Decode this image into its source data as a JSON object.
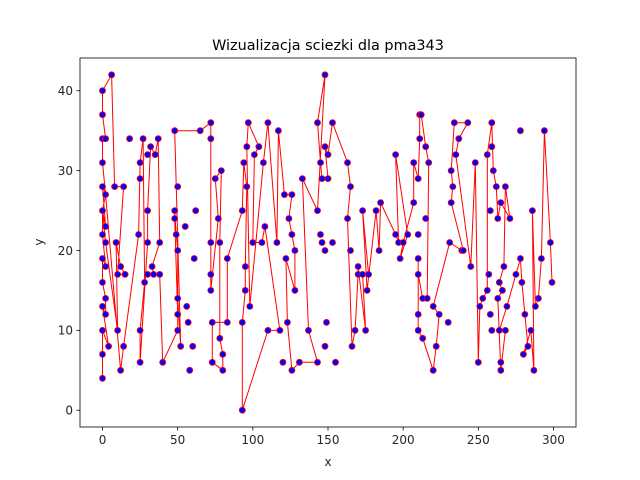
{
  "chart_data": {
    "type": "scatter",
    "title": "Wizualizacja sciezki dla pma343",
    "xlabel": "x",
    "ylabel": "y",
    "xlim": [
      -15,
      315
    ],
    "ylim": [
      -2.1,
      44.1
    ],
    "xticks": [
      0,
      50,
      100,
      150,
      200,
      250,
      300
    ],
    "yticks": [
      0,
      10,
      20,
      30,
      40
    ],
    "grid": false,
    "colors": {
      "point_fill": "#0000ff",
      "point_edge": "#ff0000",
      "line": "#ff0000"
    },
    "points": [
      [
        0,
        4
      ],
      [
        0,
        7
      ],
      [
        0,
        10
      ],
      [
        0,
        13
      ],
      [
        0,
        16
      ],
      [
        0,
        19
      ],
      [
        0,
        22
      ],
      [
        0,
        25
      ],
      [
        0,
        28
      ],
      [
        0,
        31
      ],
      [
        0,
        34
      ],
      [
        0,
        37
      ],
      [
        0,
        40
      ],
      [
        2,
        12
      ],
      [
        2,
        14
      ],
      [
        2,
        18
      ],
      [
        2,
        21
      ],
      [
        2,
        23
      ],
      [
        2,
        27
      ],
      [
        2,
        34
      ],
      [
        4,
        8
      ],
      [
        6,
        42
      ],
      [
        8,
        28
      ],
      [
        9,
        21
      ],
      [
        10,
        17
      ],
      [
        10,
        10
      ],
      [
        12,
        18
      ],
      [
        12,
        5
      ],
      [
        14,
        8
      ],
      [
        14,
        28
      ],
      [
        15,
        17
      ],
      [
        18,
        34
      ],
      [
        24,
        22
      ],
      [
        25,
        10
      ],
      [
        25,
        6
      ],
      [
        25,
        31
      ],
      [
        25,
        29
      ],
      [
        27,
        34
      ],
      [
        28,
        16
      ],
      [
        30,
        17
      ],
      [
        30,
        21
      ],
      [
        30,
        25
      ],
      [
        30,
        32
      ],
      [
        32,
        33
      ],
      [
        33,
        18
      ],
      [
        34,
        17
      ],
      [
        35,
        32
      ],
      [
        37,
        34
      ],
      [
        38,
        17
      ],
      [
        38,
        21
      ],
      [
        40,
        6
      ],
      [
        48,
        35
      ],
      [
        48,
        25
      ],
      [
        48,
        24
      ],
      [
        49,
        22
      ],
      [
        50,
        28
      ],
      [
        50,
        20
      ],
      [
        50,
        14
      ],
      [
        50,
        12
      ],
      [
        50,
        10
      ],
      [
        52,
        8
      ],
      [
        55,
        23
      ],
      [
        56,
        13
      ],
      [
        57,
        11
      ],
      [
        58,
        5
      ],
      [
        60,
        8
      ],
      [
        61,
        19
      ],
      [
        62,
        25
      ],
      [
        65,
        35
      ],
      [
        72,
        36
      ],
      [
        72,
        34
      ],
      [
        72,
        21
      ],
      [
        72,
        17
      ],
      [
        72,
        15
      ],
      [
        73,
        11
      ],
      [
        73,
        6
      ],
      [
        75,
        29
      ],
      [
        77,
        24
      ],
      [
        78,
        21
      ],
      [
        78,
        9
      ],
      [
        79,
        30
      ],
      [
        80,
        5
      ],
      [
        80,
        7
      ],
      [
        83,
        11
      ],
      [
        83,
        19
      ],
      [
        93,
        0
      ],
      [
        93,
        11
      ],
      [
        93,
        25
      ],
      [
        94,
        31
      ],
      [
        95,
        18
      ],
      [
        95,
        15
      ],
      [
        96,
        28
      ],
      [
        96,
        33
      ],
      [
        97,
        36
      ],
      [
        98,
        13
      ],
      [
        100,
        21
      ],
      [
        101,
        32
      ],
      [
        104,
        33
      ],
      [
        106,
        21
      ],
      [
        107,
        31
      ],
      [
        108,
        23
      ],
      [
        110,
        10
      ],
      [
        110,
        36
      ],
      [
        116,
        21
      ],
      [
        117,
        35
      ],
      [
        118,
        10
      ],
      [
        120,
        6
      ],
      [
        121,
        27
      ],
      [
        122,
        19
      ],
      [
        123,
        11
      ],
      [
        124,
        24
      ],
      [
        126,
        27
      ],
      [
        126,
        5
      ],
      [
        126,
        22
      ],
      [
        128,
        15
      ],
      [
        128,
        20
      ],
      [
        131,
        6
      ],
      [
        133,
        29
      ],
      [
        137,
        10
      ],
      [
        143,
        6
      ],
      [
        143,
        25
      ],
      [
        143,
        36
      ],
      [
        145,
        31
      ],
      [
        145,
        22
      ],
      [
        146,
        21
      ],
      [
        146,
        29
      ],
      [
        148,
        8
      ],
      [
        148,
        42
      ],
      [
        148,
        20
      ],
      [
        148,
        33
      ],
      [
        149,
        11
      ],
      [
        150,
        32
      ],
      [
        150,
        29
      ],
      [
        153,
        21
      ],
      [
        153,
        36
      ],
      [
        155,
        6
      ],
      [
        163,
        24
      ],
      [
        163,
        31
      ],
      [
        165,
        28
      ],
      [
        165,
        20
      ],
      [
        166,
        8
      ],
      [
        168,
        10
      ],
      [
        170,
        18
      ],
      [
        170,
        17
      ],
      [
        173,
        25
      ],
      [
        173,
        17
      ],
      [
        175,
        10
      ],
      [
        176,
        15
      ],
      [
        177,
        17
      ],
      [
        182,
        25
      ],
      [
        184,
        20
      ],
      [
        185,
        26
      ],
      [
        195,
        32
      ],
      [
        195,
        22
      ],
      [
        197,
        21
      ],
      [
        198,
        19
      ],
      [
        200,
        21
      ],
      [
        203,
        22
      ],
      [
        207,
        31
      ],
      [
        207,
        26
      ],
      [
        210,
        17
      ],
      [
        210,
        12
      ],
      [
        210,
        10
      ],
      [
        210,
        19
      ],
      [
        210,
        22
      ],
      [
        210,
        29
      ],
      [
        211,
        34
      ],
      [
        211,
        37
      ],
      [
        212,
        37
      ],
      [
        213,
        14
      ],
      [
        213,
        9
      ],
      [
        215,
        33
      ],
      [
        215,
        24
      ],
      [
        216,
        14
      ],
      [
        217,
        31
      ],
      [
        220,
        13
      ],
      [
        220,
        5
      ],
      [
        222,
        8
      ],
      [
        224,
        12
      ],
      [
        230,
        11
      ],
      [
        231,
        21
      ],
      [
        232,
        30
      ],
      [
        232,
        26
      ],
      [
        233,
        28
      ],
      [
        234,
        36
      ],
      [
        235,
        32
      ],
      [
        237,
        34
      ],
      [
        239,
        20
      ],
      [
        240,
        20
      ],
      [
        243,
        36
      ],
      [
        245,
        18
      ],
      [
        248,
        31
      ],
      [
        250,
        6
      ],
      [
        251,
        13
      ],
      [
        253,
        14
      ],
      [
        256,
        32
      ],
      [
        256,
        15
      ],
      [
        257,
        17
      ],
      [
        258,
        12
      ],
      [
        258,
        25
      ],
      [
        259,
        36
      ],
      [
        259,
        10
      ],
      [
        259,
        33
      ],
      [
        260,
        30
      ],
      [
        262,
        28
      ],
      [
        263,
        24
      ],
      [
        263,
        14
      ],
      [
        264,
        16
      ],
      [
        264,
        10
      ],
      [
        265,
        5
      ],
      [
        265,
        26
      ],
      [
        265,
        6
      ],
      [
        266,
        15
      ],
      [
        267,
        18
      ],
      [
        268,
        10
      ],
      [
        268,
        28
      ],
      [
        269,
        13
      ],
      [
        271,
        24
      ],
      [
        275,
        17
      ],
      [
        278,
        35
      ],
      [
        278,
        19
      ],
      [
        279,
        16
      ],
      [
        280,
        7
      ],
      [
        281,
        12
      ],
      [
        283,
        8
      ],
      [
        285,
        10
      ],
      [
        286,
        25
      ],
      [
        287,
        5
      ],
      [
        288,
        13
      ],
      [
        290,
        14
      ],
      [
        292,
        19
      ],
      [
        294,
        35
      ],
      [
        298,
        21
      ],
      [
        299,
        16
      ]
    ],
    "path": [
      [
        0,
        4
      ],
      [
        0,
        7
      ],
      [
        0,
        10
      ],
      [
        4,
        8
      ],
      [
        0,
        13
      ],
      [
        2,
        12
      ],
      [
        2,
        14
      ],
      [
        0,
        16
      ],
      [
        0,
        19
      ],
      [
        2,
        18
      ],
      [
        0,
        22
      ],
      [
        0,
        25
      ],
      [
        2,
        23
      ],
      [
        0,
        28
      ],
      [
        2,
        27
      ],
      [
        0,
        31
      ],
      [
        0,
        34
      ],
      [
        2,
        34
      ],
      [
        0,
        37
      ],
      [
        0,
        40
      ],
      [
        6,
        42
      ],
      [
        8,
        28
      ],
      [
        14,
        28
      ],
      [
        10,
        17
      ],
      [
        15,
        17
      ],
      [
        12,
        18
      ],
      [
        9,
        21
      ],
      [
        10,
        10
      ],
      [
        2,
        21
      ],
      [
        0,
        25
      ],
      [
        2,
        27
      ],
      [
        12,
        5
      ],
      [
        14,
        8
      ],
      [
        24,
        22
      ],
      [
        25,
        31
      ],
      [
        27,
        34
      ],
      [
        28,
        16
      ],
      [
        25,
        10
      ],
      [
        25,
        6
      ],
      [
        30,
        21
      ],
      [
        30,
        25
      ],
      [
        32,
        33
      ],
      [
        35,
        32
      ],
      [
        37,
        34
      ],
      [
        38,
        21
      ],
      [
        33,
        18
      ],
      [
        34,
        17
      ],
      [
        30,
        17
      ],
      [
        38,
        17
      ],
      [
        40,
        6
      ],
      [
        50,
        10
      ],
      [
        50,
        12
      ],
      [
        48,
        24
      ],
      [
        48,
        25
      ],
      [
        49,
        22
      ],
      [
        50,
        20
      ],
      [
        50,
        14
      ],
      [
        52,
        8
      ],
      [
        48,
        35
      ],
      [
        65,
        35
      ],
      [
        72,
        36
      ],
      [
        72,
        34
      ],
      [
        72,
        21
      ],
      [
        72,
        17
      ],
      [
        72,
        15
      ],
      [
        77,
        24
      ],
      [
        75,
        29
      ],
      [
        79,
        30
      ],
      [
        78,
        21
      ],
      [
        78,
        9
      ],
      [
        80,
        7
      ],
      [
        80,
        5
      ],
      [
        73,
        6
      ],
      [
        73,
        11
      ],
      [
        83,
        11
      ],
      [
        83,
        19
      ],
      [
        93,
        25
      ],
      [
        94,
        31
      ],
      [
        96,
        28
      ],
      [
        95,
        18
      ],
      [
        95,
        15
      ],
      [
        93,
        11
      ],
      [
        93,
        0
      ],
      [
        110,
        10
      ],
      [
        118,
        10
      ],
      [
        108,
        23
      ],
      [
        106,
        21
      ],
      [
        100,
        21
      ],
      [
        101,
        32
      ],
      [
        104,
        33
      ],
      [
        97,
        36
      ],
      [
        96,
        33
      ],
      [
        98,
        13
      ],
      [
        107,
        31
      ],
      [
        110,
        36
      ],
      [
        116,
        21
      ],
      [
        117,
        35
      ],
      [
        121,
        27
      ],
      [
        126,
        27
      ],
      [
        124,
        24
      ],
      [
        126,
        22
      ],
      [
        128,
        20
      ],
      [
        128,
        15
      ],
      [
        122,
        19
      ],
      [
        123,
        11
      ],
      [
        126,
        5
      ],
      [
        131,
        6
      ],
      [
        143,
        6
      ],
      [
        137,
        10
      ],
      [
        133,
        29
      ],
      [
        143,
        25
      ],
      [
        148,
        42
      ],
      [
        143,
        36
      ],
      [
        145,
        31
      ],
      [
        146,
        29
      ],
      [
        150,
        29
      ],
      [
        148,
        33
      ],
      [
        150,
        32
      ],
      [
        153,
        36
      ],
      [
        163,
        31
      ],
      [
        165,
        28
      ],
      [
        163,
        24
      ],
      [
        166,
        8
      ],
      [
        168,
        10
      ],
      [
        170,
        17
      ],
      [
        170,
        18
      ],
      [
        175,
        10
      ],
      [
        173,
        17
      ],
      [
        177,
        17
      ],
      [
        173,
        25
      ],
      [
        176,
        15
      ],
      [
        182,
        25
      ],
      [
        184,
        20
      ],
      [
        185,
        26
      ],
      [
        195,
        22
      ],
      [
        197,
        21
      ],
      [
        195,
        32
      ],
      [
        203,
        22
      ],
      [
        198,
        19
      ],
      [
        200,
        21
      ],
      [
        207,
        26
      ],
      [
        207,
        31
      ],
      [
        210,
        29
      ],
      [
        211,
        34
      ],
      [
        211,
        37
      ],
      [
        212,
        37
      ],
      [
        215,
        33
      ],
      [
        217,
        31
      ],
      [
        216,
        14
      ],
      [
        213,
        14
      ],
      [
        210,
        17
      ],
      [
        210,
        19
      ],
      [
        210,
        12
      ],
      [
        210,
        10
      ],
      [
        213,
        9
      ],
      [
        220,
        5
      ],
      [
        222,
        8
      ],
      [
        224,
        12
      ],
      [
        220,
        13
      ],
      [
        231,
        21
      ],
      [
        239,
        20
      ],
      [
        240,
        20
      ],
      [
        232,
        26
      ],
      [
        233,
        28
      ],
      [
        232,
        30
      ],
      [
        234,
        36
      ],
      [
        243,
        36
      ],
      [
        237,
        34
      ],
      [
        235,
        32
      ],
      [
        245,
        18
      ],
      [
        248,
        31
      ],
      [
        250,
        6
      ],
      [
        251,
        13
      ],
      [
        253,
        14
      ],
      [
        256,
        15
      ],
      [
        256,
        32
      ],
      [
        259,
        36
      ],
      [
        260,
        30
      ],
      [
        262,
        28
      ],
      [
        263,
        24
      ],
      [
        265,
        26
      ],
      [
        271,
        24
      ],
      [
        268,
        28
      ],
      [
        267,
        18
      ],
      [
        264,
        16
      ],
      [
        266,
        15
      ],
      [
        263,
        14
      ],
      [
        265,
        5
      ],
      [
        268,
        10
      ],
      [
        264,
        10
      ],
      [
        269,
        13
      ],
      [
        275,
        17
      ],
      [
        278,
        19
      ],
      [
        279,
        16
      ],
      [
        281,
        12
      ],
      [
        283,
        8
      ],
      [
        280,
        7
      ],
      [
        285,
        10
      ],
      [
        287,
        5
      ],
      [
        286,
        25
      ],
      [
        288,
        13
      ],
      [
        290,
        14
      ],
      [
        292,
        19
      ],
      [
        294,
        35
      ],
      [
        298,
        21
      ],
      [
        299,
        16
      ]
    ]
  }
}
